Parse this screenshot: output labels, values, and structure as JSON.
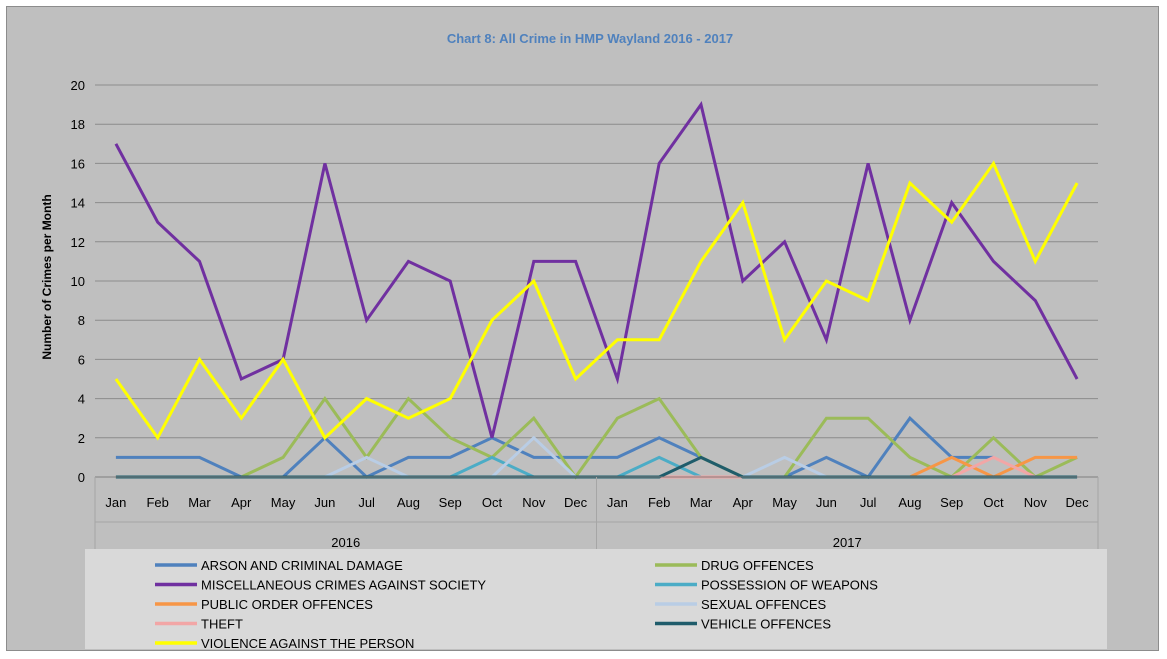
{
  "chart_data": {
    "type": "line",
    "title": "Chart 8: All Crime in HMP Wayland 2016 - 2017",
    "ylabel": "Number of Crimes per Month",
    "xlabel": "",
    "ylim": [
      0,
      20
    ],
    "yticks": [
      0,
      2,
      4,
      6,
      8,
      10,
      12,
      14,
      16,
      18,
      20
    ],
    "grid": true,
    "legend_position": "bottom",
    "groups": [
      "2016",
      "2017"
    ],
    "categories": [
      "Jan",
      "Feb",
      "Mar",
      "Apr",
      "May",
      "Jun",
      "Jul",
      "Aug",
      "Sep",
      "Oct",
      "Nov",
      "Dec",
      "Jan",
      "Feb",
      "Mar",
      "Apr",
      "May",
      "Jun",
      "Jul",
      "Aug",
      "Sep",
      "Oct",
      "Nov",
      "Dec"
    ],
    "series": [
      {
        "name": "ARSON AND CRIMINAL DAMAGE",
        "color": "#4f81bd",
        "values": [
          1,
          1,
          1,
          0,
          0,
          2,
          0,
          1,
          1,
          2,
          1,
          1,
          1,
          2,
          1,
          0,
          0,
          1,
          0,
          3,
          1,
          1,
          null,
          null
        ]
      },
      {
        "name": "DRUG OFFENCES",
        "color": "#9bbb59",
        "values": [
          0,
          0,
          0,
          0,
          1,
          4,
          1,
          4,
          2,
          1,
          3,
          0,
          3,
          4,
          1,
          0,
          0,
          3,
          3,
          1,
          0,
          2,
          0,
          1
        ]
      },
      {
        "name": "MISCELLANEOUS CRIMES AGAINST SOCIETY",
        "color": "#7030a0",
        "values": [
          17,
          13,
          11,
          5,
          6,
          16,
          8,
          11,
          10,
          2,
          11,
          11,
          5,
          16,
          19,
          10,
          12,
          7,
          16,
          8,
          14,
          11,
          9,
          5
        ]
      },
      {
        "name": "POSSESSION OF WEAPONS",
        "color": "#4bacc6",
        "values": [
          0,
          0,
          0,
          0,
          0,
          0,
          0,
          0,
          0,
          1,
          0,
          0,
          0,
          1,
          0,
          0,
          0,
          0,
          0,
          0,
          0,
          0,
          0,
          0
        ]
      },
      {
        "name": "PUBLIC ORDER OFFENCES",
        "color": "#f79646",
        "values": [
          0,
          0,
          0,
          0,
          0,
          0,
          0,
          0,
          0,
          0,
          0,
          0,
          0,
          0,
          0,
          0,
          0,
          0,
          0,
          0,
          1,
          0,
          1,
          1
        ]
      },
      {
        "name": "SEXUAL OFFENCES",
        "color": "#b9cde5",
        "values": [
          0,
          0,
          0,
          0,
          0,
          0,
          1,
          0,
          0,
          0,
          2,
          0,
          0,
          0,
          0,
          0,
          1,
          0,
          0,
          0,
          0,
          0,
          0,
          0
        ]
      },
      {
        "name": "THEFT",
        "color": "#f2a6a6",
        "values": [
          0,
          0,
          0,
          0,
          0,
          0,
          0,
          0,
          0,
          0,
          0,
          0,
          0,
          0,
          0,
          0,
          0,
          0,
          0,
          0,
          0,
          1,
          0,
          0
        ]
      },
      {
        "name": "VEHICLE OFFENCES",
        "color": "#1f5c6b",
        "values": [
          0,
          0,
          0,
          0,
          0,
          0,
          0,
          0,
          0,
          0,
          0,
          0,
          0,
          0,
          1,
          0,
          0,
          0,
          0,
          0,
          0,
          0,
          0,
          0
        ]
      },
      {
        "name": "VIOLENCE AGAINST THE PERSON",
        "color": "#ffff00",
        "values": [
          5,
          2,
          6,
          3,
          6,
          2,
          4,
          3,
          4,
          8,
          10,
          5,
          7,
          7,
          11,
          14,
          7,
          10,
          9,
          15,
          13,
          16,
          11,
          15
        ]
      }
    ],
    "colors": {
      "title": "#4f81bd",
      "plot_background": "#bfbfbf",
      "gridline": "#8c8c8c",
      "legend_background": "#d9d9d9"
    }
  }
}
